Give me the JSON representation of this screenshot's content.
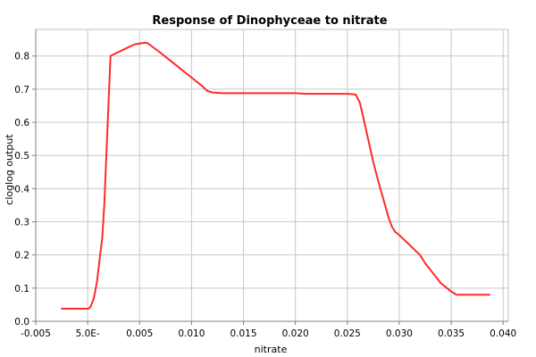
{
  "chart_data": {
    "type": "line",
    "title": "Response of Dinophyceae to nitrate",
    "xlabel": "nitrate",
    "ylabel": "cloglog output",
    "xlim": [
      -0.005,
      0.0405
    ],
    "ylim": [
      0,
      0.88
    ],
    "grid": true,
    "legend": "none",
    "x_ticks": [
      {
        "value": -0.005,
        "label": "-0.005"
      },
      {
        "value": 0.0,
        "label": "5.0E-"
      },
      {
        "value": 0.005,
        "label": "0.005"
      },
      {
        "value": 0.01,
        "label": "0.010"
      },
      {
        "value": 0.015,
        "label": "0.015"
      },
      {
        "value": 0.02,
        "label": "0.020"
      },
      {
        "value": 0.025,
        "label": "0.025"
      },
      {
        "value": 0.03,
        "label": "0.030"
      },
      {
        "value": 0.035,
        "label": "0.035"
      },
      {
        "value": 0.04,
        "label": "0.040"
      }
    ],
    "y_ticks": [
      {
        "value": 0.0,
        "label": "0.0"
      },
      {
        "value": 0.1,
        "label": "0.1"
      },
      {
        "value": 0.2,
        "label": "0.2"
      },
      {
        "value": 0.3,
        "label": "0.3"
      },
      {
        "value": 0.4,
        "label": "0.4"
      },
      {
        "value": 0.5,
        "label": "0.5"
      },
      {
        "value": 0.6,
        "label": "0.6"
      },
      {
        "value": 0.7,
        "label": "0.7"
      },
      {
        "value": 0.8,
        "label": "0.8"
      }
    ],
    "series": [
      {
        "color": "#ff2a2a",
        "x": [
          -0.0025,
          0.0001,
          0.0003,
          0.0006,
          0.0009,
          0.0012,
          0.0014,
          0.0016,
          0.0018,
          0.002,
          0.0022,
          0.0025,
          0.0035,
          0.0045,
          0.0055,
          0.0058,
          0.007,
          0.008,
          0.009,
          0.01,
          0.011,
          0.0115,
          0.012,
          0.013,
          0.015,
          0.018,
          0.02,
          0.021,
          0.023,
          0.025,
          0.0258,
          0.0262,
          0.0265,
          0.027,
          0.0275,
          0.028,
          0.0285,
          0.029,
          0.0293,
          0.0296,
          0.03,
          0.0305,
          0.031,
          0.032,
          0.0325,
          0.033,
          0.034,
          0.035,
          0.0355,
          0.037,
          0.0387
        ],
        "values": [
          0.038,
          0.038,
          0.045,
          0.07,
          0.12,
          0.2,
          0.25,
          0.35,
          0.5,
          0.65,
          0.8,
          0.805,
          0.82,
          0.835,
          0.84,
          0.838,
          0.81,
          0.785,
          0.76,
          0.735,
          0.71,
          0.695,
          0.69,
          0.688,
          0.688,
          0.688,
          0.688,
          0.686,
          0.686,
          0.686,
          0.684,
          0.66,
          0.62,
          0.55,
          0.48,
          0.42,
          0.365,
          0.31,
          0.285,
          0.27,
          0.26,
          0.245,
          0.23,
          0.2,
          0.175,
          0.155,
          0.115,
          0.09,
          0.08,
          0.08,
          0.08
        ]
      }
    ]
  }
}
